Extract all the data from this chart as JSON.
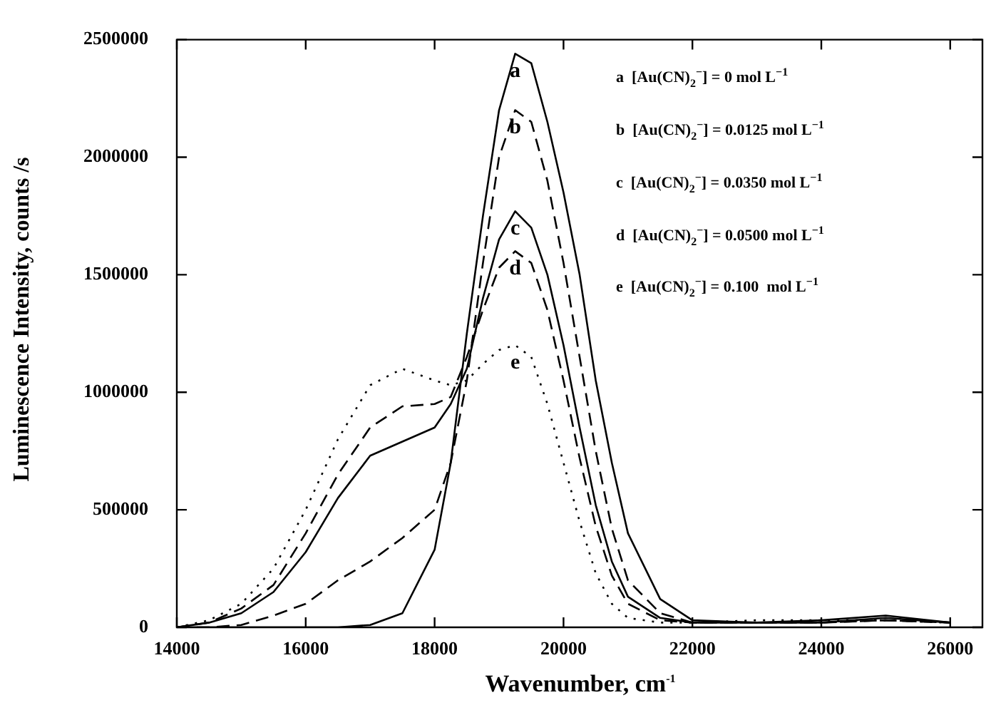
{
  "chart_data": {
    "type": "line",
    "xlabel": "Wavenumber, cm$^{-1}$",
    "ylabel": "Luminescence Intensity, counts /s",
    "x": [
      14000,
      14500,
      15000,
      15500,
      16000,
      16500,
      17000,
      17500,
      18000,
      18250,
      18500,
      18750,
      19000,
      19250,
      19500,
      19750,
      20000,
      20250,
      20500,
      20750,
      21000,
      21500,
      22000,
      23000,
      24000,
      25000,
      26000
    ],
    "series": [
      {
        "name": "a",
        "color": "#000000",
        "line_style": "solid",
        "values": [
          0,
          0,
          0,
          0,
          0,
          0,
          10000,
          60000,
          330000,
          700000,
          1250000,
          1750000,
          2200000,
          2440000,
          2400000,
          2150000,
          1850000,
          1500000,
          1050000,
          700000,
          400000,
          120000,
          30000,
          20000,
          20000,
          40000,
          20000
        ]
      },
      {
        "name": "b",
        "color": "#000000",
        "line_style": "dashed",
        "values": [
          0,
          0,
          10000,
          50000,
          100000,
          200000,
          280000,
          380000,
          500000,
          700000,
          1050000,
          1550000,
          2000000,
          2200000,
          2150000,
          1900000,
          1550000,
          1150000,
          750000,
          420000,
          200000,
          60000,
          20000,
          20000,
          20000,
          30000,
          20000
        ]
      },
      {
        "name": "c",
        "color": "#000000",
        "line_style": "solid",
        "values": [
          0,
          20000,
          60000,
          150000,
          320000,
          550000,
          730000,
          790000,
          850000,
          950000,
          1100000,
          1400000,
          1650000,
          1770000,
          1700000,
          1500000,
          1200000,
          850000,
          520000,
          280000,
          130000,
          40000,
          20000,
          20000,
          30000,
          50000,
          20000
        ]
      },
      {
        "name": "d",
        "color": "#000000",
        "line_style": "dashed",
        "values": [
          0,
          20000,
          80000,
          180000,
          400000,
          650000,
          850000,
          940000,
          950000,
          980000,
          1150000,
          1350000,
          1530000,
          1600000,
          1550000,
          1350000,
          1050000,
          720000,
          430000,
          220000,
          100000,
          30000,
          20000,
          20000,
          20000,
          30000,
          20000
        ]
      },
      {
        "name": "e",
        "color": "#000000",
        "line_style": "dotted",
        "values": [
          0,
          30000,
          100000,
          250000,
          500000,
          800000,
          1030000,
          1100000,
          1050000,
          1030000,
          1050000,
          1120000,
          1180000,
          1200000,
          1150000,
          950000,
          700000,
          450000,
          230000,
          100000,
          40000,
          20000,
          20000,
          30000,
          30000,
          30000,
          20000
        ]
      }
    ],
    "xlim": [
      14000,
      26500
    ],
    "xticks": [
      14000,
      16000,
      18000,
      20000,
      22000,
      24000,
      26000
    ],
    "ylim": [
      0,
      2500000
    ],
    "yticks": [
      0,
      500000,
      1000000,
      1500000,
      2000000,
      2500000
    ],
    "grid": false,
    "legend": false,
    "marker": "none",
    "annotations": [
      "a  [Au(CN)$_{2}$$^{−}$] = 0 mol L$^{−1}$",
      "b  [Au(CN)$_{2}$$^{−}$] = 0.0125 mol L$^{−1}$",
      "c  [Au(CN)$_{2}$$^{−}$] = 0.0350 mol L$^{−1}$",
      "d  [Au(CN)$_{2}$$^{−}$] = 0.0500 mol L$^{−1}$",
      "e  [Au(CN)$_{2}$$^{−}$] = 0.100  mol L$^{−1}$"
    ]
  }
}
